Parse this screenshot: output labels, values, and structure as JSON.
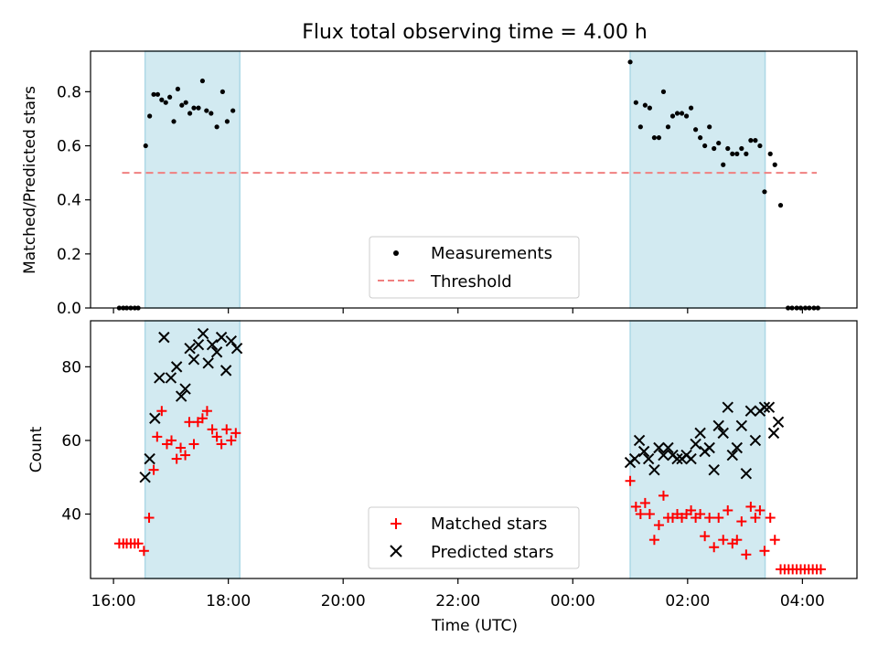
{
  "colors": {
    "measurement": "#000000",
    "threshold": "#f08080",
    "matched": "#ff0000",
    "predicted": "#000000",
    "night_band": "#add8e6"
  },
  "chart_data": [
    {
      "type": "scatter",
      "title": "Flux total observing time = 4.00 h",
      "ylabel": "Matched/Predicted stars",
      "xlabel": "",
      "ylim": [
        0.0,
        0.95
      ],
      "yticks": [
        "0.0",
        "0.2",
        "0.4",
        "0.6",
        "0.8"
      ],
      "x_range_hours": [
        15.6,
        28.95
      ],
      "shaded_intervals": [
        [
          16.55,
          18.2
        ],
        [
          25.0,
          27.35
        ]
      ],
      "threshold": {
        "name": "Threshold",
        "value": 0.5,
        "x_range": [
          16.15,
          28.25
        ]
      },
      "legend": [
        "Measurements",
        "Threshold"
      ],
      "legend_position": "lower center",
      "series": [
        {
          "name": "Measurements",
          "points": [
            [
              16.1,
              0.0
            ],
            [
              16.17,
              0.0
            ],
            [
              16.23,
              0.0
            ],
            [
              16.3,
              0.0
            ],
            [
              16.37,
              0.0
            ],
            [
              16.43,
              0.0
            ],
            [
              16.56,
              0.6
            ],
            [
              16.63,
              0.71
            ],
            [
              16.7,
              0.79
            ],
            [
              16.77,
              0.79
            ],
            [
              16.84,
              0.77
            ],
            [
              16.91,
              0.76
            ],
            [
              16.98,
              0.78
            ],
            [
              17.05,
              0.69
            ],
            [
              17.12,
              0.81
            ],
            [
              17.19,
              0.75
            ],
            [
              17.26,
              0.76
            ],
            [
              17.33,
              0.72
            ],
            [
              17.4,
              0.74
            ],
            [
              17.48,
              0.74
            ],
            [
              17.55,
              0.84
            ],
            [
              17.62,
              0.73
            ],
            [
              17.7,
              0.72
            ],
            [
              17.8,
              0.67
            ],
            [
              17.9,
              0.8
            ],
            [
              17.98,
              0.69
            ],
            [
              18.08,
              0.73
            ],
            [
              25.0,
              0.91
            ],
            [
              25.1,
              0.76
            ],
            [
              25.18,
              0.67
            ],
            [
              25.26,
              0.75
            ],
            [
              25.34,
              0.74
            ],
            [
              25.42,
              0.63
            ],
            [
              25.5,
              0.63
            ],
            [
              25.58,
              0.8
            ],
            [
              25.66,
              0.67
            ],
            [
              25.74,
              0.71
            ],
            [
              25.82,
              0.72
            ],
            [
              25.9,
              0.72
            ],
            [
              25.98,
              0.71
            ],
            [
              26.06,
              0.74
            ],
            [
              26.14,
              0.66
            ],
            [
              26.22,
              0.63
            ],
            [
              26.3,
              0.6
            ],
            [
              26.38,
              0.67
            ],
            [
              26.46,
              0.59
            ],
            [
              26.54,
              0.61
            ],
            [
              26.62,
              0.53
            ],
            [
              26.7,
              0.59
            ],
            [
              26.78,
              0.57
            ],
            [
              26.86,
              0.57
            ],
            [
              26.94,
              0.59
            ],
            [
              27.02,
              0.57
            ],
            [
              27.1,
              0.62
            ],
            [
              27.18,
              0.62
            ],
            [
              27.26,
              0.6
            ],
            [
              27.34,
              0.43
            ],
            [
              27.44,
              0.57
            ],
            [
              27.52,
              0.53
            ],
            [
              27.62,
              0.38
            ],
            [
              27.75,
              0.0
            ],
            [
              27.82,
              0.0
            ],
            [
              27.9,
              0.0
            ],
            [
              27.97,
              0.0
            ],
            [
              28.05,
              0.0
            ],
            [
              28.12,
              0.0
            ],
            [
              28.2,
              0.0
            ],
            [
              28.27,
              0.0
            ]
          ]
        }
      ]
    },
    {
      "type": "scatter",
      "title": "",
      "ylabel": "Count",
      "xlabel": "Time (UTC)",
      "ylim": [
        22.5,
        92.5
      ],
      "yticks": [
        "40",
        "60",
        "80"
      ],
      "x_range_hours": [
        15.6,
        28.95
      ],
      "xticks": [
        "16:00",
        "18:00",
        "20:00",
        "22:00",
        "00:00",
        "02:00",
        "04:00"
      ],
      "shaded_intervals": [
        [
          16.55,
          18.2
        ],
        [
          25.0,
          27.35
        ]
      ],
      "legend": [
        "Matched stars",
        "Predicted stars"
      ],
      "legend_position": "lower center",
      "series": [
        {
          "name": "Matched stars",
          "points": [
            [
              16.1,
              32
            ],
            [
              16.17,
              32
            ],
            [
              16.23,
              32
            ],
            [
              16.3,
              32
            ],
            [
              16.37,
              32
            ],
            [
              16.43,
              32
            ],
            [
              16.53,
              30
            ],
            [
              16.62,
              39
            ],
            [
              16.7,
              52
            ],
            [
              16.76,
              61
            ],
            [
              16.84,
              68
            ],
            [
              16.93,
              59
            ],
            [
              17.01,
              60
            ],
            [
              17.1,
              55
            ],
            [
              17.17,
              58
            ],
            [
              17.25,
              56
            ],
            [
              17.32,
              65
            ],
            [
              17.4,
              59
            ],
            [
              17.47,
              65
            ],
            [
              17.55,
              66
            ],
            [
              17.63,
              68
            ],
            [
              17.72,
              63
            ],
            [
              17.8,
              61
            ],
            [
              17.88,
              59
            ],
            [
              17.97,
              63
            ],
            [
              18.05,
              60
            ],
            [
              18.13,
              62
            ],
            [
              25.0,
              49
            ],
            [
              25.1,
              42
            ],
            [
              25.18,
              40
            ],
            [
              25.26,
              43
            ],
            [
              25.34,
              40
            ],
            [
              25.42,
              33
            ],
            [
              25.5,
              37
            ],
            [
              25.58,
              45
            ],
            [
              25.66,
              39
            ],
            [
              25.74,
              39
            ],
            [
              25.82,
              40
            ],
            [
              25.9,
              39
            ],
            [
              25.98,
              40
            ],
            [
              26.06,
              41
            ],
            [
              26.14,
              39
            ],
            [
              26.22,
              40
            ],
            [
              26.3,
              34
            ],
            [
              26.38,
              39
            ],
            [
              26.46,
              31
            ],
            [
              26.54,
              39
            ],
            [
              26.62,
              33
            ],
            [
              26.7,
              41
            ],
            [
              26.78,
              32
            ],
            [
              26.86,
              33
            ],
            [
              26.94,
              38
            ],
            [
              27.02,
              29
            ],
            [
              27.1,
              42
            ],
            [
              27.18,
              39
            ],
            [
              27.26,
              41
            ],
            [
              27.34,
              30
            ],
            [
              27.44,
              39
            ],
            [
              27.52,
              33
            ],
            [
              27.62,
              25
            ],
            [
              27.69,
              25
            ],
            [
              27.76,
              25
            ],
            [
              27.83,
              25
            ],
            [
              27.9,
              25
            ],
            [
              27.97,
              25
            ],
            [
              28.04,
              25
            ],
            [
              28.11,
              25
            ],
            [
              28.18,
              25
            ],
            [
              28.25,
              25
            ],
            [
              28.32,
              25
            ]
          ]
        },
        {
          "name": "Predicted stars",
          "points": [
            [
              16.55,
              50
            ],
            [
              16.63,
              55
            ],
            [
              16.72,
              66
            ],
            [
              16.8,
              77
            ],
            [
              16.88,
              88
            ],
            [
              17.0,
              77
            ],
            [
              17.1,
              80
            ],
            [
              17.18,
              72
            ],
            [
              17.25,
              74
            ],
            [
              17.33,
              85
            ],
            [
              17.4,
              82
            ],
            [
              17.48,
              86
            ],
            [
              17.56,
              89
            ],
            [
              17.65,
              81
            ],
            [
              17.72,
              86
            ],
            [
              17.8,
              84
            ],
            [
              17.88,
              88
            ],
            [
              17.96,
              79
            ],
            [
              18.05,
              87
            ],
            [
              18.15,
              85
            ],
            [
              25.0,
              54
            ],
            [
              25.08,
              55
            ],
            [
              25.16,
              60
            ],
            [
              25.24,
              57
            ],
            [
              25.32,
              55
            ],
            [
              25.42,
              52
            ],
            [
              25.5,
              58
            ],
            [
              25.58,
              56
            ],
            [
              25.66,
              58
            ],
            [
              25.74,
              56
            ],
            [
              25.82,
              55
            ],
            [
              25.9,
              55
            ],
            [
              25.98,
              56
            ],
            [
              26.06,
              55
            ],
            [
              26.14,
              59
            ],
            [
              26.22,
              62
            ],
            [
              26.3,
              57
            ],
            [
              26.38,
              58
            ],
            [
              26.46,
              52
            ],
            [
              26.54,
              64
            ],
            [
              26.62,
              62
            ],
            [
              26.7,
              69
            ],
            [
              26.78,
              56
            ],
            [
              26.86,
              58
            ],
            [
              26.94,
              64
            ],
            [
              27.02,
              51
            ],
            [
              27.1,
              68
            ],
            [
              27.18,
              60
            ],
            [
              27.26,
              68
            ],
            [
              27.34,
              69
            ],
            [
              27.42,
              69
            ],
            [
              27.5,
              62
            ],
            [
              27.58,
              65
            ]
          ]
        }
      ]
    }
  ]
}
